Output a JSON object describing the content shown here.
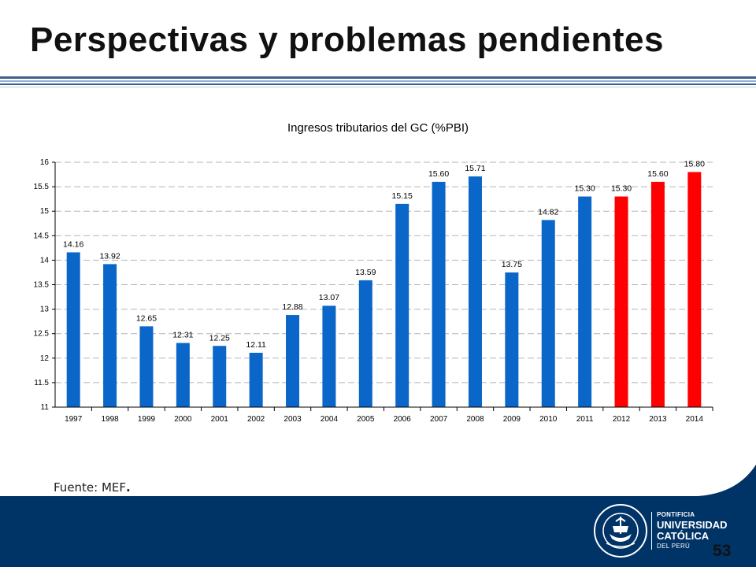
{
  "slide": {
    "title": "Perspectivas y problemas pendientes",
    "source_label": "Fuente: MEF",
    "source_dot": ".",
    "page_number": "53"
  },
  "university": {
    "line1": "PONTIFICIA",
    "line2": "UNIVERSIDAD",
    "line3": "CATÓLICA",
    "line4": "DEL PERÚ",
    "seal_motto": "ET LUX IN TENEBRIS LUCET",
    "seal_year": "MCMXVII"
  },
  "colors": {
    "actual": "#0a66c8",
    "projected": "#ff0000",
    "footer": "#003366",
    "rule": "#3f5f8c"
  },
  "chart_data": {
    "type": "bar",
    "title": "Ingresos tributarios del GC (%PBI)",
    "categories": [
      "1997",
      "1998",
      "1999",
      "2000",
      "2001",
      "2002",
      "2003",
      "2004",
      "2005",
      "2006",
      "2007",
      "2008",
      "2009",
      "2010",
      "2011",
      "2012",
      "2013",
      "2014"
    ],
    "values": [
      14.16,
      13.92,
      12.65,
      12.31,
      12.25,
      12.11,
      12.88,
      13.07,
      13.59,
      15.15,
      15.6,
      15.71,
      13.75,
      14.82,
      15.3,
      15.3,
      15.6,
      15.8
    ],
    "value_labels": [
      "14.16",
      "13.92",
      "12.65",
      "12.31",
      "12.25",
      "12.11",
      "12.88",
      "13.07",
      "13.59",
      "15.15",
      "15.60",
      "15.71",
      "13.75",
      "14.82",
      "15.30",
      "15.30",
      "15.60",
      "15.80"
    ],
    "projected_from_index": 15,
    "xlabel": "",
    "ylabel": "",
    "ylim": [
      11,
      16
    ],
    "yticks": [
      "11",
      "11.5",
      "12",
      "12.5",
      "13",
      "13.5",
      "14",
      "14.5",
      "15",
      "15.5",
      "16"
    ],
    "grid": true,
    "grid_style": "dashed"
  }
}
